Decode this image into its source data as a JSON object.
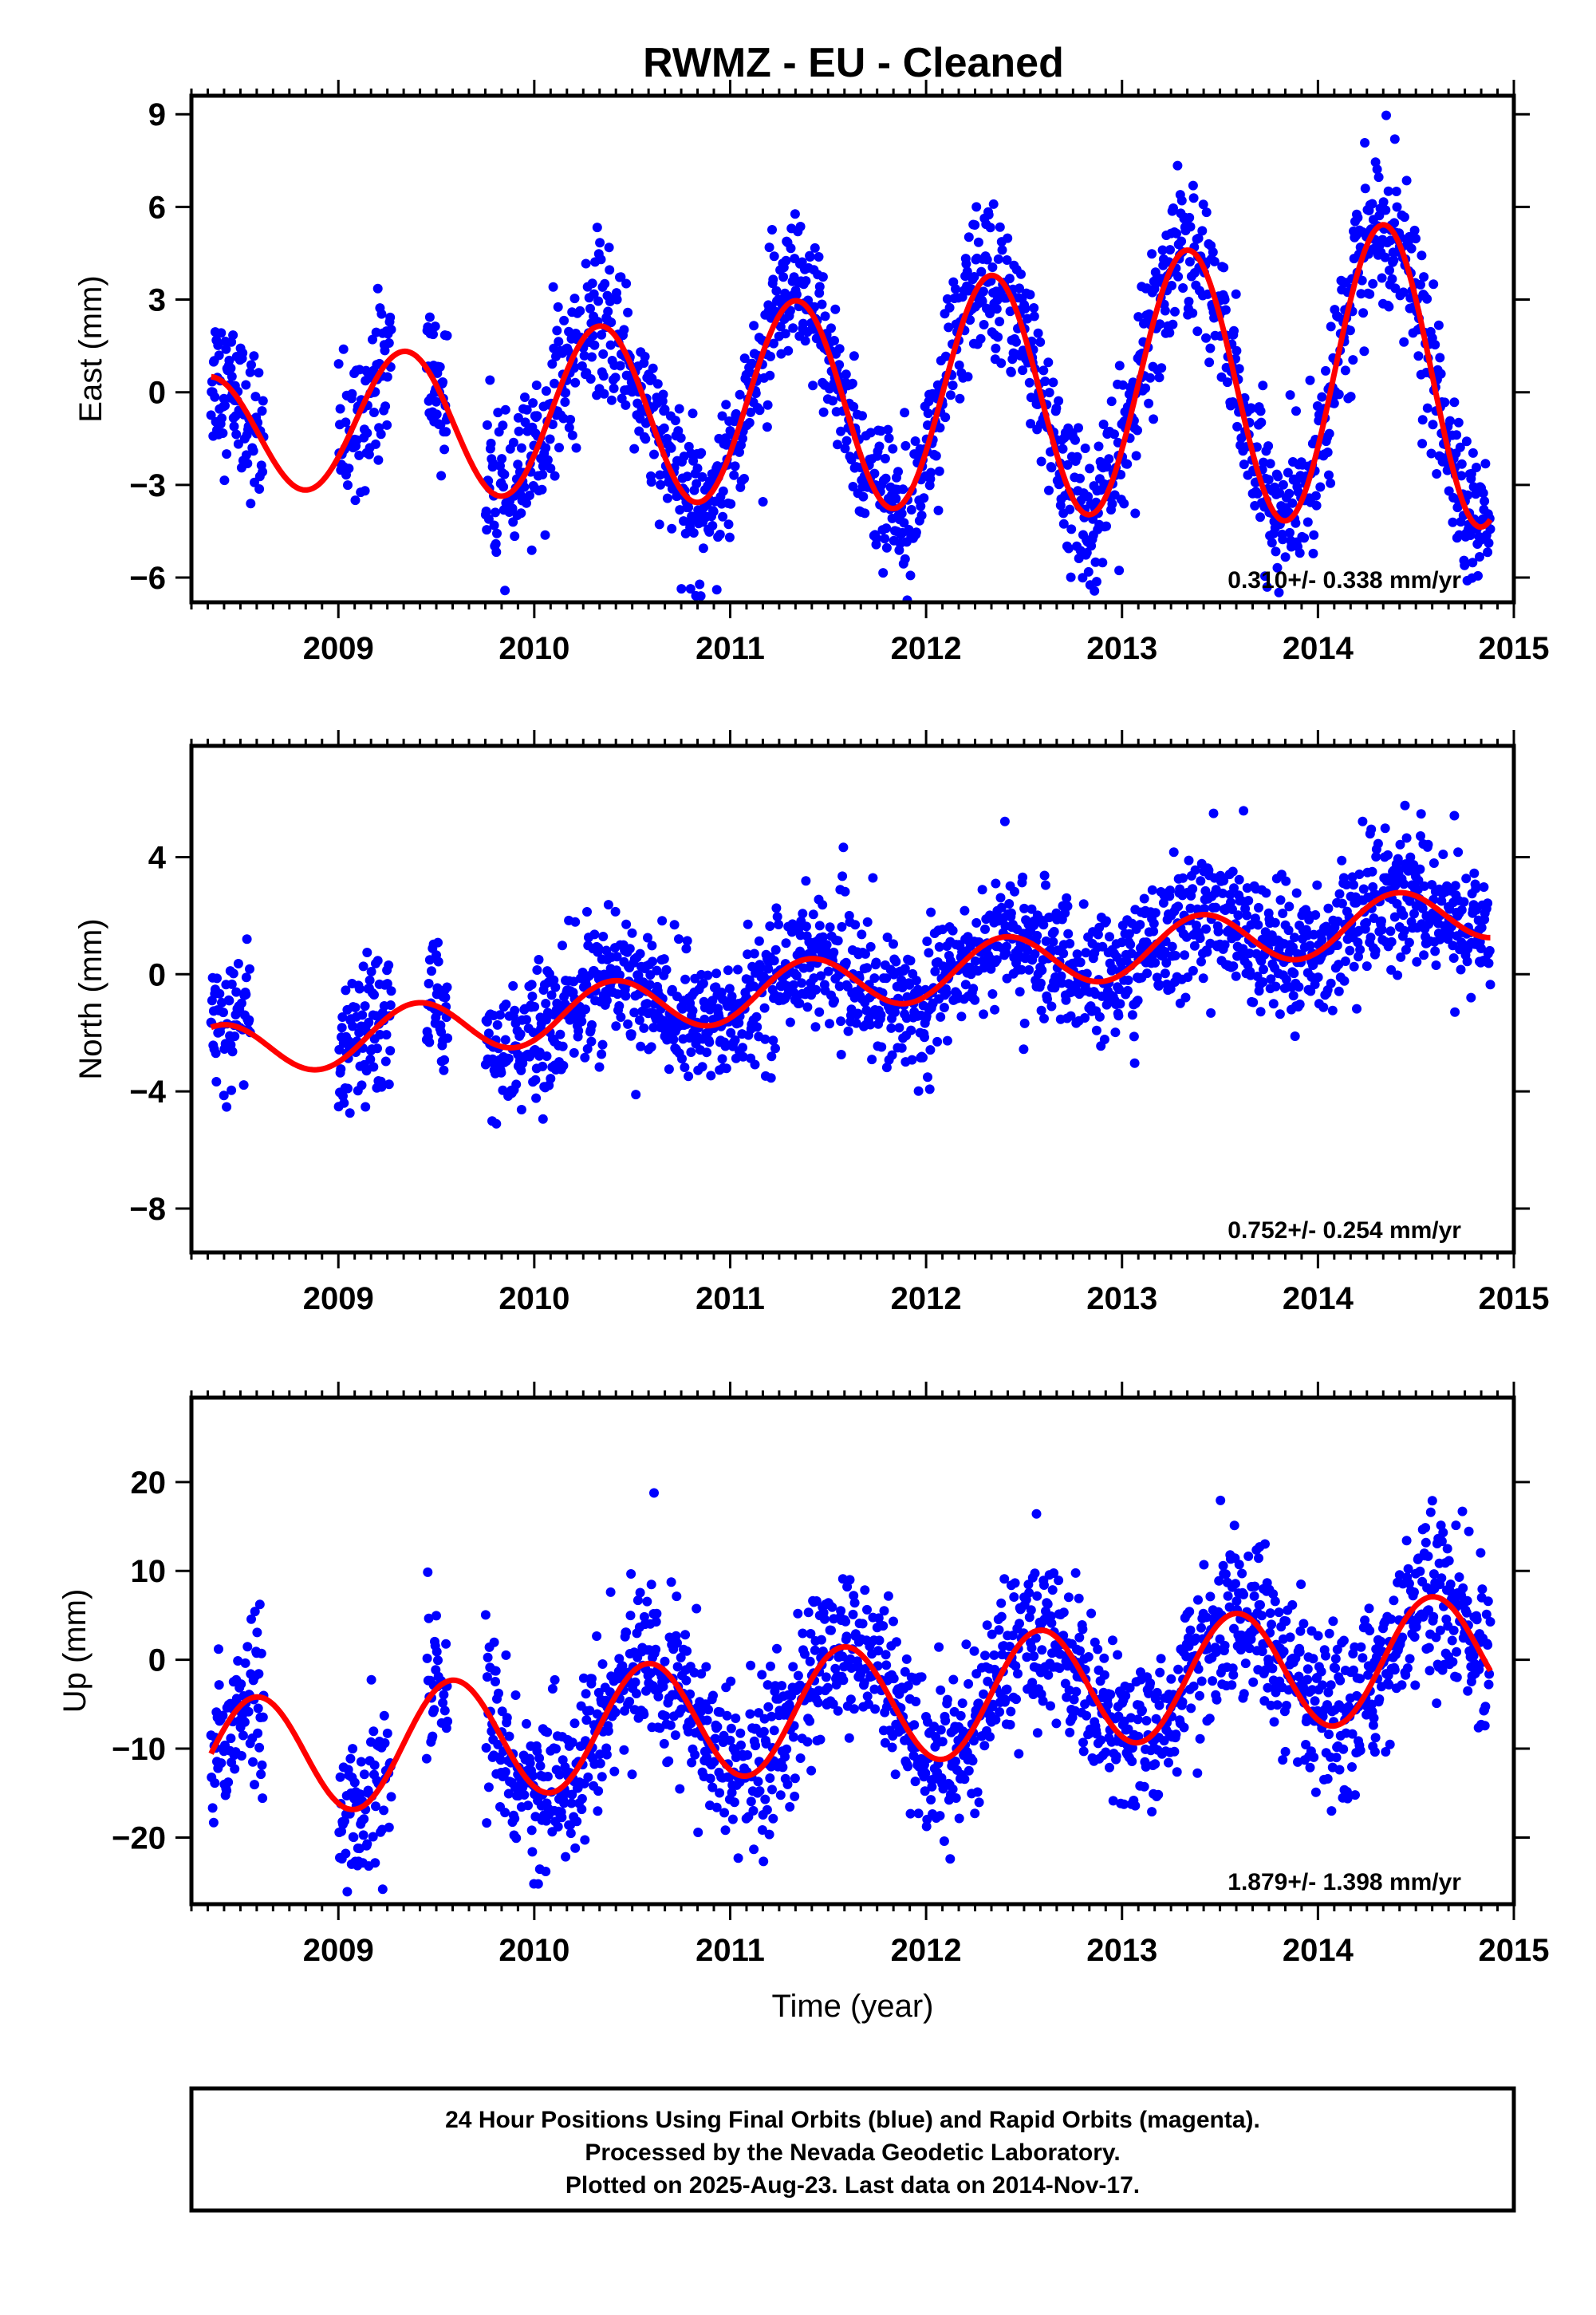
{
  "title": "RWMZ  - EU - Cleaned",
  "footer": {
    "line1": "24 Hour Positions Using Final Orbits (blue) and Rapid Orbits (magenta).",
    "line2": "Processed by the Nevada Geodetic Laboratory.",
    "line3": "Plotted on 2025-Aug-23. Last data on 2014-Nov-17."
  },
  "colors": {
    "points": "#0000ff",
    "model": "#ff0000",
    "frame": "#000000"
  },
  "chart_data": [
    {
      "type": "scatter",
      "title": "RWMZ  - EU - Cleaned",
      "xlabel": "",
      "ylabel": "East (mm)",
      "xlim": [
        2008.25,
        2015.0
      ],
      "ylim": [
        -6.8,
        9.6
      ],
      "xticks": [
        "2009",
        "2010",
        "2011",
        "2012",
        "2013",
        "2014",
        "2015"
      ],
      "yticks": [
        "9",
        "6",
        "3",
        "0",
        "−3",
        "−6"
      ],
      "ytick_values": [
        9,
        6,
        3,
        0,
        -3,
        -6
      ],
      "rate_label": "0.310+/- 0.338 mm/yr",
      "data_span": [
        2008.35,
        2014.88
      ],
      "gaps": [
        [
          2008.62,
          2009.0
        ],
        [
          2009.27,
          2009.45
        ],
        [
          2009.56,
          2009.75
        ]
      ],
      "series": [
        {
          "kind": "points",
          "model": {
            "slope": 0.31,
            "offset": -0.3,
            "amplitude": 3.4,
            "phase_year": 0.33,
            "amp_growth": 0.15
          },
          "noise": 1.2
        },
        {
          "kind": "model_line"
        }
      ]
    },
    {
      "type": "scatter",
      "xlabel": "",
      "ylabel": "North (mm)",
      "xlim": [
        2008.25,
        2015.0
      ],
      "ylim": [
        -9.5,
        7.8
      ],
      "xticks": [
        "2009",
        "2010",
        "2011",
        "2012",
        "2013",
        "2014",
        "2015"
      ],
      "yticks": [
        "4",
        "0",
        "−4",
        "−8"
      ],
      "ytick_values": [
        4,
        0,
        -4,
        -8
      ],
      "rate_label": "0.752+/- 0.254 mm/yr",
      "data_span": [
        2008.35,
        2014.88
      ],
      "gaps": [
        [
          2008.55,
          2009.0
        ],
        [
          2009.27,
          2009.45
        ],
        [
          2009.56,
          2009.75
        ]
      ],
      "series": [
        {
          "kind": "points",
          "model": {
            "slope": 0.752,
            "offset": -0.35,
            "amplitude": 0.95,
            "phase_year": 0.4,
            "amp_growth": 0.0
          },
          "noise": 1.1
        },
        {
          "kind": "model_line"
        }
      ]
    },
    {
      "type": "scatter",
      "xlabel": "Time (year)",
      "ylabel": "Up (mm)",
      "xlim": [
        2008.25,
        2015.0
      ],
      "ylim": [
        -27.5,
        29.5
      ],
      "xticks": [
        "2009",
        "2010",
        "2011",
        "2012",
        "2013",
        "2014",
        "2015"
      ],
      "yticks": [
        "20",
        "10",
        "0",
        "−10",
        "−20"
      ],
      "ytick_values": [
        20,
        10,
        0,
        -10,
        -20
      ],
      "rate_label": "1.879+/- 1.398 mm/yr",
      "data_span": [
        2008.35,
        2014.88
      ],
      "gaps": [
        [
          2008.62,
          2009.0
        ],
        [
          2009.27,
          2009.45
        ],
        [
          2009.56,
          2009.75
        ]
      ],
      "series": [
        {
          "kind": "points",
          "model": {
            "slope": 1.879,
            "offset": -5.5,
            "amplitude": 6.8,
            "phase_year": 0.58,
            "amp_growth": 0.0
          },
          "noise": 4.5
        },
        {
          "kind": "model_line"
        }
      ]
    }
  ]
}
